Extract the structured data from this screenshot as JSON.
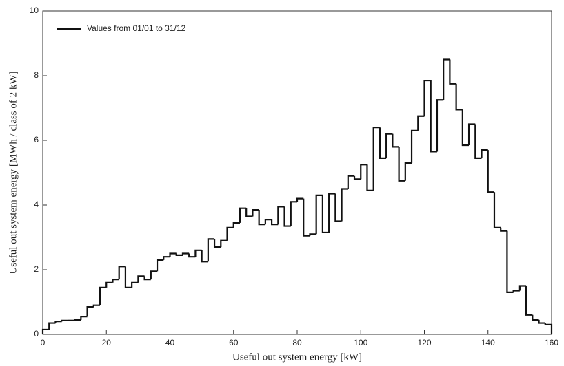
{
  "chart_data": {
    "type": "histogram",
    "xlabel": "Useful out system energy [kW]",
    "ylabel": "Useful out system energy [MWh / class of 2 kW]",
    "series": [
      {
        "name": "Values from 01/01 to 31/12",
        "color": "#111111",
        "values": [
          0.15,
          0.35,
          0.4,
          0.43,
          0.43,
          0.45,
          0.55,
          0.85,
          0.9,
          1.45,
          1.6,
          1.7,
          2.1,
          1.45,
          1.6,
          1.8,
          1.7,
          1.95,
          2.3,
          2.4,
          2.5,
          2.45,
          2.5,
          2.4,
          2.6,
          2.25,
          2.95,
          2.7,
          2.9,
          3.3,
          3.45,
          3.9,
          3.65,
          3.85,
          3.4,
          3.55,
          3.4,
          3.95,
          3.35,
          4.1,
          4.2,
          3.05,
          3.1,
          4.3,
          3.15,
          4.35,
          3.5,
          4.5,
          4.9,
          4.8,
          5.25,
          4.45,
          6.4,
          5.45,
          6.2,
          5.8,
          4.75,
          5.3,
          6.3,
          6.75,
          7.85,
          5.65,
          7.25,
          8.5,
          7.75,
          6.95,
          5.85,
          6.5,
          5.45,
          5.7,
          4.4,
          3.3,
          3.2,
          1.3,
          1.35,
          1.5,
          0.6,
          0.45,
          0.35,
          0.3
        ]
      }
    ],
    "bins": [
      0,
      2,
      4,
      6,
      8,
      10,
      12,
      14,
      16,
      18,
      20,
      22,
      24,
      26,
      28,
      30,
      32,
      34,
      36,
      38,
      40,
      42,
      44,
      46,
      48,
      50,
      52,
      54,
      56,
      58,
      60,
      62,
      64,
      66,
      68,
      70,
      72,
      74,
      76,
      78,
      80,
      82,
      84,
      86,
      88,
      90,
      92,
      94,
      96,
      98,
      100,
      102,
      104,
      106,
      108,
      110,
      112,
      114,
      116,
      118,
      120,
      122,
      124,
      126,
      128,
      130,
      132,
      134,
      136,
      138,
      140,
      142,
      144,
      146,
      148,
      150,
      152,
      154,
      156,
      158,
      160
    ],
    "xlim": [
      0,
      160
    ],
    "xticks": [
      0,
      20,
      40,
      60,
      80,
      100,
      120,
      140,
      160
    ],
    "ylim": [
      0,
      10
    ],
    "yticks": [
      0,
      2,
      4,
      6,
      8,
      10
    ],
    "legend": "upper-left"
  }
}
